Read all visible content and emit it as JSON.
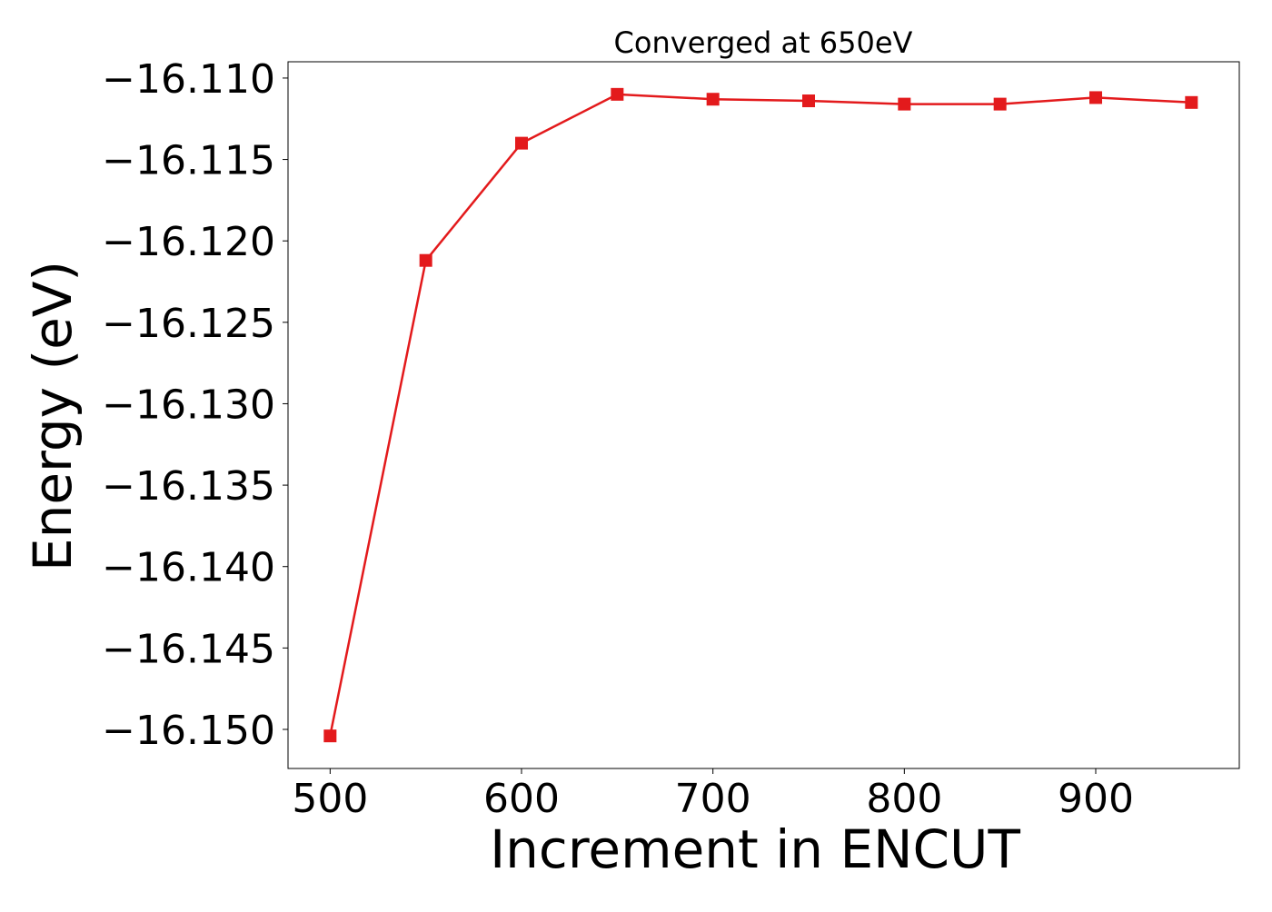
{
  "chart_data": {
    "type": "line",
    "title": "Converged at 650eV",
    "xlabel": "Increment in ENCUT",
    "ylabel": "Energy (eV)",
    "xlim": [
      478,
      975
    ],
    "ylim": [
      -16.1524,
      -16.109
    ],
    "xticks": [
      500,
      600,
      700,
      800,
      900
    ],
    "xtick_labels": [
      "500",
      "600",
      "700",
      "800",
      "900"
    ],
    "yticks": [
      -16.11,
      -16.115,
      -16.12,
      -16.125,
      -16.13,
      -16.135,
      -16.14,
      -16.145,
      -16.15
    ],
    "ytick_labels": [
      "−16.110",
      "−16.115",
      "−16.120",
      "−16.125",
      "−16.130",
      "−16.135",
      "−16.140",
      "−16.145",
      "−16.150"
    ],
    "grid": false,
    "legend": "none",
    "series": [
      {
        "marker": "square",
        "color": "#e31a1c",
        "x": [
          500,
          550,
          600,
          650,
          700,
          750,
          800,
          850,
          900,
          950
        ],
        "y": [
          -16.1504,
          -16.1212,
          -16.114,
          -16.111,
          -16.1113,
          -16.1114,
          -16.1116,
          -16.1116,
          -16.1112,
          -16.1115
        ]
      }
    ]
  }
}
